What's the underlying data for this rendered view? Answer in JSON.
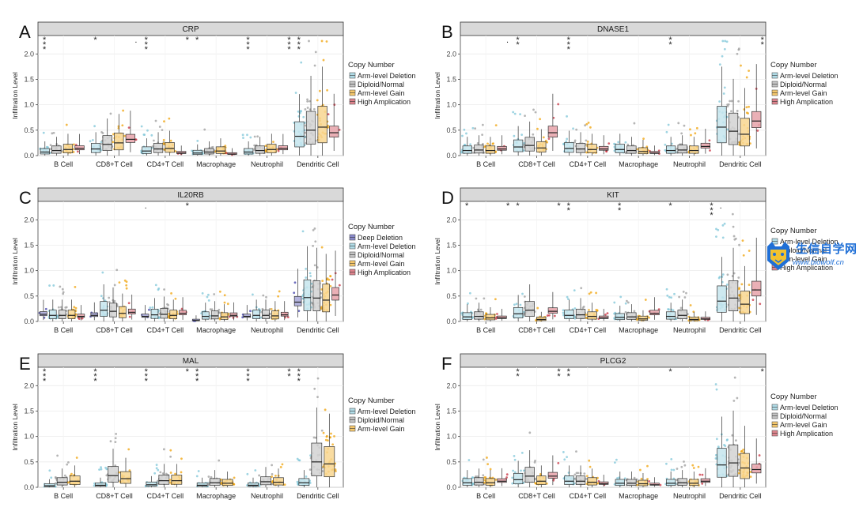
{
  "legend_title": "Copy Number",
  "y_axis_label": "Infiltration Level",
  "cell_types": [
    "B Cell",
    "CD8+T Cell",
    "CD4+T Cell",
    "Macrophage",
    "Neutrophil",
    "Dendritic Cell"
  ],
  "cnv_colors": {
    "Deep Deletion": "#3b3ba8",
    "Arm-level Deletion": "#7dc6d8",
    "Diploid/Normal": "#9c9c9c",
    "Arm-level Gain": "#f0a30a",
    "High Amplication": "#c8303f"
  },
  "watermark": {
    "title": "生信自学网",
    "url": "www.biowolf.cn"
  },
  "chart_data": [
    {
      "type": "box",
      "letter": "A",
      "title": "CRP",
      "ylim": [
        0,
        2.3
      ],
      "yticks": [
        0,
        0.5,
        1.0,
        1.5,
        2.0
      ],
      "legend": [
        "Arm-level Deletion",
        "Diploid/Normal",
        "Arm-level Gain",
        "High Amplication"
      ],
      "significance": [
        [
          "***",
          "",
          "",
          ""
        ],
        [
          "*",
          ".",
          "",
          ""
        ],
        [
          "***",
          "*",
          "",
          ""
        ],
        [
          "*",
          "",
          "",
          ""
        ],
        [
          "***",
          "***",
          "",
          ""
        ],
        [
          "***",
          "",
          "",
          ""
        ]
      ],
      "medians": [
        [
          0.07,
          0.1,
          0.12,
          0.14
        ],
        [
          0.13,
          0.22,
          0.25,
          0.32
        ],
        [
          0.09,
          0.13,
          0.14,
          0.05
        ],
        [
          0.05,
          0.07,
          0.09,
          0.03
        ],
        [
          0.07,
          0.1,
          0.12,
          0.14
        ],
        [
          0.38,
          0.5,
          0.56,
          0.45
        ]
      ]
    },
    {
      "type": "box",
      "letter": "B",
      "title": "DNASE1",
      "ylim": [
        0,
        2.3
      ],
      "yticks": [
        0,
        0.5,
        1.0,
        1.5,
        2.0
      ],
      "legend": [
        "Arm-level Deletion",
        "Diploid/Normal",
        "Arm-level Gain",
        "High Amplication"
      ],
      "significance": [
        [
          "",
          ".",
          "",
          ""
        ],
        [
          "**",
          "",
          "",
          ""
        ],
        [
          "***",
          "",
          "",
          ""
        ],
        [
          "",
          "",
          "",
          ""
        ],
        [
          "**",
          "",
          "",
          ""
        ],
        [
          "",
          "**",
          "",
          ""
        ]
      ],
      "medians": [
        [
          0.1,
          0.11,
          0.1,
          0.13
        ],
        [
          0.17,
          0.2,
          0.15,
          0.45
        ],
        [
          0.14,
          0.13,
          0.12,
          0.13
        ],
        [
          0.12,
          0.1,
          0.08,
          0.05
        ],
        [
          0.1,
          0.11,
          0.1,
          0.18
        ],
        [
          0.56,
          0.48,
          0.42,
          0.68
        ]
      ]
    },
    {
      "type": "box",
      "letter": "C",
      "title": "IL20RB",
      "ylim": [
        0,
        2.3
      ],
      "yticks": [
        0,
        0.5,
        1.0,
        1.5,
        2.0
      ],
      "legend": [
        "Deep Deletion",
        "Arm-level Deletion",
        "Diploid/Normal",
        "Arm-level Gain",
        "High Amplication"
      ],
      "significance": [
        [
          "",
          "",
          "",
          "",
          ""
        ],
        [
          "",
          "",
          "",
          "",
          ""
        ],
        [
          ".",
          "*",
          "",
          "",
          ""
        ],
        [
          "",
          "",
          "",
          "",
          ""
        ],
        [
          "",
          "",
          "",
          "",
          ""
        ],
        [
          "",
          "",
          "",
          "",
          ""
        ]
      ],
      "medians": [
        [
          0.14,
          0.12,
          0.12,
          0.12,
          0.1
        ],
        [
          0.12,
          0.22,
          0.2,
          0.16,
          0.18
        ],
        [
          0.1,
          0.13,
          0.14,
          0.12,
          0.16
        ],
        [
          0.02,
          0.1,
          0.11,
          0.09,
          0.12
        ],
        [
          0.1,
          0.12,
          0.12,
          0.11,
          0.13
        ],
        [
          0.38,
          0.47,
          0.46,
          0.42,
          0.52
        ]
      ]
    },
    {
      "type": "box",
      "letter": "D",
      "title": "KIT",
      "ylim": [
        0,
        2.3
      ],
      "yticks": [
        0,
        0.5,
        1.0,
        1.5,
        2.0
      ],
      "legend": [
        "Arm-level Deletion",
        "Diploid/Normal",
        "Arm-level Gain",
        "High Amplication"
      ],
      "significance": [
        [
          "*",
          "*",
          "",
          ""
        ],
        [
          "*",
          "*",
          "",
          ""
        ],
        [
          "**",
          "",
          "",
          ""
        ],
        [
          "**",
          "",
          "",
          ""
        ],
        [
          "*",
          "***",
          "",
          ""
        ],
        [
          ".",
          "",
          "",
          ""
        ]
      ],
      "medians": [
        [
          0.09,
          0.1,
          0.07,
          0.07
        ],
        [
          0.15,
          0.22,
          0.04,
          0.2
        ],
        [
          0.12,
          0.13,
          0.1,
          0.07
        ],
        [
          0.08,
          0.09,
          0.05,
          0.16
        ],
        [
          0.1,
          0.12,
          0.04,
          0.05
        ],
        [
          0.4,
          0.46,
          0.34,
          0.62
        ]
      ]
    },
    {
      "type": "box",
      "letter": "E",
      "title": "MAL",
      "ylim": [
        0,
        2.3
      ],
      "yticks": [
        0,
        0.5,
        1.0,
        1.5,
        2.0
      ],
      "legend": [
        "Arm-level Deletion",
        "Diploid/Normal",
        "Arm-level Gain"
      ],
      "significance": [
        [
          "***",
          ""
        ],
        [
          "***",
          ""
        ],
        [
          "***",
          "*"
        ],
        [
          "***",
          ""
        ],
        [
          "***",
          "**"
        ],
        [
          "***",
          ""
        ]
      ],
      "medians": [
        [
          0.03,
          0.1,
          0.12
        ],
        [
          0.04,
          0.23,
          0.17
        ],
        [
          0.05,
          0.13,
          0.13
        ],
        [
          0.04,
          0.09,
          0.08
        ],
        [
          0.04,
          0.11,
          0.1
        ],
        [
          0.09,
          0.5,
          0.46
        ]
      ]
    },
    {
      "type": "box",
      "letter": "F",
      "title": "PLCG2",
      "ylim": [
        0,
        2.3
      ],
      "yticks": [
        0,
        0.5,
        1.0,
        1.5,
        2.0
      ],
      "legend": [
        "Arm-level Deletion",
        "Diploid/Normal",
        "Arm-level Gain",
        "High Amplication"
      ],
      "significance": [
        [
          "",
          "",
          "",
          ""
        ],
        [
          "**",
          "**",
          "",
          ""
        ],
        [
          "**",
          "",
          "",
          ""
        ],
        [
          "",
          "",
          "",
          ""
        ],
        [
          "*",
          "",
          "",
          ""
        ],
        [
          "",
          "*",
          "",
          ""
        ]
      ],
      "medians": [
        [
          0.09,
          0.1,
          0.09,
          0.12
        ],
        [
          0.15,
          0.22,
          0.12,
          0.22
        ],
        [
          0.12,
          0.12,
          0.1,
          0.07
        ],
        [
          0.08,
          0.08,
          0.07,
          0.05
        ],
        [
          0.08,
          0.09,
          0.08,
          0.12
        ],
        [
          0.44,
          0.48,
          0.38,
          0.35
        ]
      ]
    }
  ]
}
